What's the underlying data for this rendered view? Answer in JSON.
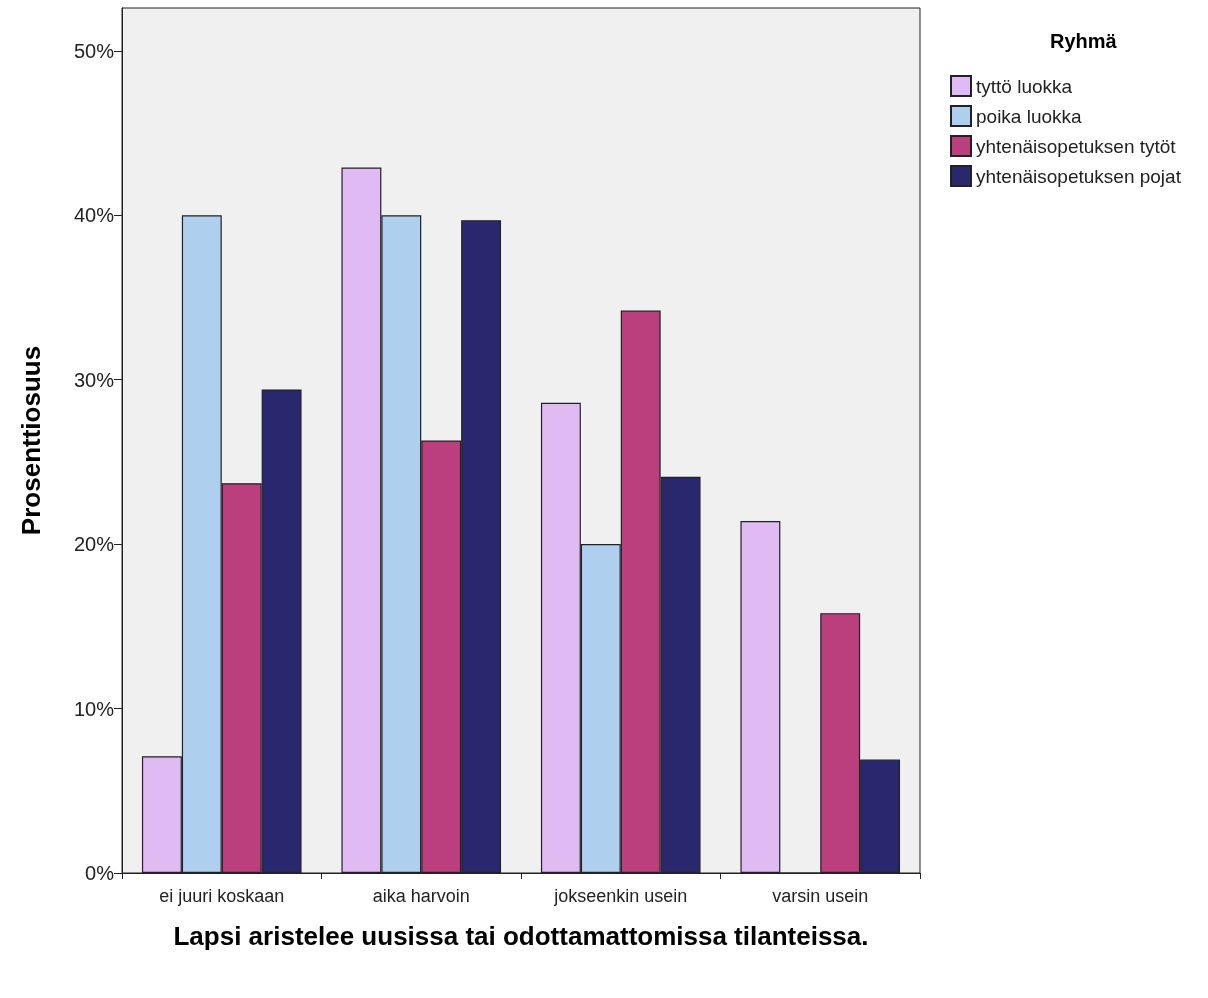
{
  "chart_data": {
    "type": "bar",
    "xlabel": "Lapsi aristelee uusissa tai odottamattomissa tilanteissa.",
    "ylabel": "Prosenttiosuus",
    "legend_title": "Ryhmä",
    "categories": [
      "ei juuri koskaan",
      "aika harvoin",
      "jokseenkin usein",
      "varsin usein"
    ],
    "series": [
      {
        "name": "tyttö luokka",
        "color": "#e0bbf3",
        "values": [
          7.1,
          42.9,
          28.6,
          21.4
        ]
      },
      {
        "name": "poika luokka",
        "color": "#aed0ee",
        "values": [
          40,
          40,
          20,
          0
        ]
      },
      {
        "name": "yhtenäisopetuksen tytöt",
        "color": "#bb3f7c",
        "values": [
          23.7,
          26.3,
          34.2,
          15.8
        ]
      },
      {
        "name": "yhtenäisopetuksen pojat",
        "color": "#29286f",
        "values": [
          29.4,
          39.7,
          24.1,
          6.9
        ]
      }
    ],
    "ylim": [
      0,
      52.6
    ],
    "yticks": [
      {
        "value": 0,
        "label": "0%"
      },
      {
        "value": 10,
        "label": "10%"
      },
      {
        "value": 20,
        "label": "20%"
      },
      {
        "value": 30,
        "label": "30%"
      },
      {
        "value": 40,
        "label": "40%"
      },
      {
        "value": 50,
        "label": "50%"
      }
    ],
    "grid": false,
    "legend": "right"
  }
}
